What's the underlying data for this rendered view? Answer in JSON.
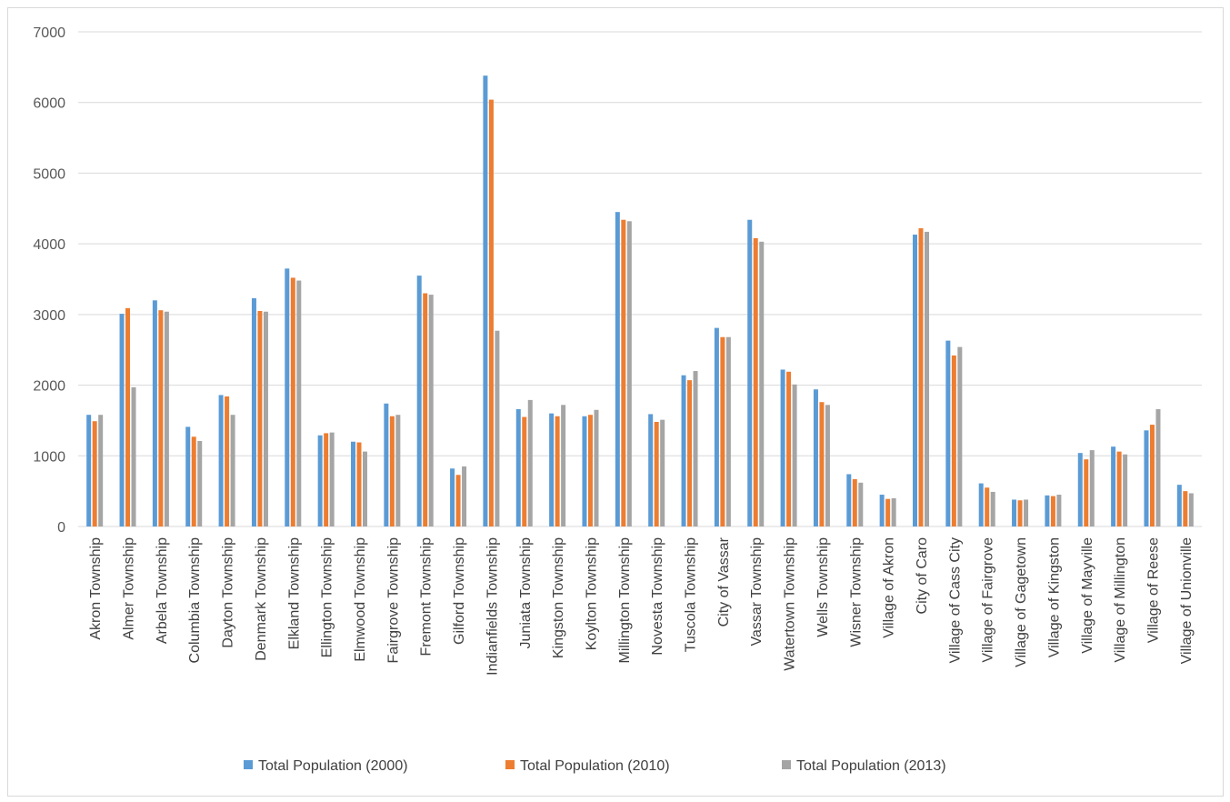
{
  "chart_data": {
    "type": "bar",
    "title": "",
    "xlabel": "",
    "ylabel": "",
    "ylim": [
      0,
      7000
    ],
    "yticks": [
      0,
      1000,
      2000,
      3000,
      4000,
      5000,
      6000,
      7000
    ],
    "grid": true,
    "legend_position": "bottom",
    "categories": [
      "Akron Township",
      "Almer Township",
      "Arbela Township",
      "Columbia Township",
      "Dayton Township",
      "Denmark Township",
      "Elkland Township",
      "Ellington Township",
      "Elmwood Township",
      "Fairgrove Township",
      "Fremont Township",
      "Gilford Township",
      "Indianfields Township",
      "Juniata Township",
      "Kingston Township",
      "Koylton Township",
      "Millington Township",
      "Novesta Township",
      "Tuscola Township",
      "City of Vassar",
      "Vassar Township",
      "Watertown Township",
      "Wells Township",
      "Wisner Township",
      "Village of Akron",
      "City of Caro",
      "Village of Cass City",
      "Village of Fairgrove",
      "Village of Gagetown",
      "Village of Kingston",
      "Village of Mayville",
      "Village of Millington",
      "Village of Reese",
      "Village of Unionville"
    ],
    "series": [
      {
        "name": "Total Population (2000)",
        "color": "#5b9bd5",
        "values": [
          1580,
          3010,
          3200,
          1410,
          1860,
          3230,
          3650,
          1290,
          1200,
          1740,
          3550,
          820,
          6380,
          1660,
          1600,
          1560,
          4450,
          1590,
          2140,
          2810,
          4340,
          2220,
          1940,
          740,
          450,
          4130,
          2630,
          610,
          380,
          440,
          1040,
          1130,
          1360,
          590
        ]
      },
      {
        "name": "Total Population (2010)",
        "color": "#ed7d31",
        "values": [
          1490,
          3090,
          3060,
          1270,
          1840,
          3050,
          3520,
          1320,
          1190,
          1560,
          3300,
          730,
          6040,
          1550,
          1560,
          1580,
          4340,
          1480,
          2070,
          2680,
          4080,
          2190,
          1760,
          670,
          390,
          4220,
          2420,
          550,
          370,
          430,
          950,
          1060,
          1440,
          500
        ]
      },
      {
        "name": "Total Population (2013)",
        "color": "#a5a5a5",
        "values": [
          1580,
          1970,
          3040,
          1210,
          1580,
          3040,
          3480,
          1330,
          1060,
          1580,
          3280,
          850,
          2770,
          1790,
          1720,
          1650,
          4320,
          1510,
          2200,
          2680,
          4030,
          2010,
          1720,
          620,
          400,
          4170,
          2540,
          490,
          380,
          450,
          1080,
          1020,
          1660,
          470
        ]
      }
    ]
  }
}
